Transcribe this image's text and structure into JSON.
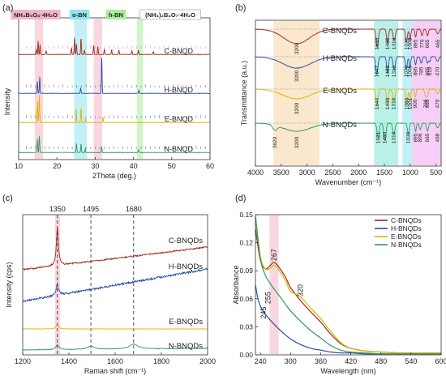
{
  "colors": {
    "C": "#9b2a1e",
    "H": "#2a4fa3",
    "E": "#e0b400",
    "N": "#2e9a5e",
    "ref_magenta": "#d63ad6",
    "ref_black": "#1a1a1a",
    "band_pink": "#f3b6c4",
    "band_cyan": "#8fe4f0",
    "band_green": "#a6ef9a",
    "band_orange": "#f6d3a6",
    "band_teal": "#7fe6d6",
    "band_magenta": "#f1a6f0"
  },
  "chart_data": [
    {
      "id": "a",
      "panel_label": "(a)",
      "type": "line",
      "xlabel": "2Theta (deg.)",
      "ylabel": "Intensity",
      "xlim": [
        10,
        60
      ],
      "xticks": [
        "10",
        "20",
        "30",
        "40",
        "50",
        "60"
      ],
      "grid": false,
      "phase_labels": [
        "NH₄B₅O₈·4H₂O",
        "o-BN",
        "h-BN",
        "(NH₄)₂B₄O₇·4H₂O"
      ],
      "highlight_bands": [
        {
          "x0": 14.2,
          "x1": 16.4,
          "color": "pink"
        },
        {
          "x0": 24.5,
          "x1": 27.8,
          "color": "cyan"
        },
        {
          "x0": 29.6,
          "x1": 31.8,
          "color": "pink"
        },
        {
          "x0": 40.9,
          "x1": 42.5,
          "color": "green"
        }
      ],
      "series": [
        {
          "name": "C-BNQD",
          "key": "C",
          "peaks": [
            [
              14.6,
              0.18
            ],
            [
              15.1,
              0.45
            ],
            [
              15.6,
              0.33
            ],
            [
              17.2,
              0.12
            ],
            [
              23.8,
              0.22
            ],
            [
              24.6,
              0.55
            ],
            [
              25.1,
              0.35
            ],
            [
              26.3,
              0.55
            ],
            [
              27.2,
              0.15
            ],
            [
              29.6,
              0.3
            ],
            [
              30.7,
              0.25
            ],
            [
              32.4,
              0.18
            ],
            [
              34.3,
              0.16
            ],
            [
              36.2,
              0.14
            ],
            [
              39.6,
              0.12
            ],
            [
              41.3,
              0.14
            ],
            [
              45.2,
              0.1
            ]
          ]
        },
        {
          "name": "H-BNQD",
          "key": "H",
          "peaks": [
            [
              14.9,
              0.4
            ],
            [
              15.5,
              0.55
            ],
            [
              26.2,
              0.18
            ],
            [
              31.7,
              1.25
            ],
            [
              41.4,
              0.1
            ]
          ]
        },
        {
          "name": "E-BNQD",
          "key": "E",
          "peaks": [
            [
              14.9,
              0.7
            ],
            [
              15.4,
              0.9
            ],
            [
              25.0,
              0.45
            ],
            [
              26.3,
              0.5
            ],
            [
              27.5,
              0.15
            ],
            [
              32.0,
              0.18
            ]
          ]
        },
        {
          "name": "N-BNQD",
          "key": "N",
          "peaks": [
            [
              14.9,
              0.45
            ],
            [
              15.4,
              0.55
            ],
            [
              25.1,
              0.3
            ],
            [
              26.3,
              0.3
            ],
            [
              27.4,
              0.12
            ],
            [
              31.7,
              0.2
            ],
            [
              41.3,
              0.1
            ]
          ]
        }
      ]
    },
    {
      "id": "b",
      "panel_label": "(b)",
      "type": "line",
      "xlabel": "Wavenumber (cm⁻¹)",
      "ylabel": "Transmittance (a.u.)",
      "xlim": [
        4000,
        400
      ],
      "xticks": [
        "4000",
        "3500",
        "3000",
        "2500",
        "2000",
        "1500",
        "1000",
        "500"
      ],
      "grid": false,
      "highlight_bands": [
        {
          "x0": 3650,
          "x1": 2760,
          "color": "orange"
        },
        {
          "x0": 1700,
          "x1": 1230,
          "color": "teal"
        },
        {
          "x0": 1150,
          "x1": 960,
          "color": "cyan"
        },
        {
          "x0": 960,
          "x1": 400,
          "color": "magenta"
        }
      ],
      "series": [
        {
          "name": "C-BNQDs",
          "key": "C",
          "labels": [
            "3200",
            "1638",
            "1439",
            "1310",
            "1072",
            "1003",
            "895",
            "770",
            "665",
            "465"
          ]
        },
        {
          "name": "H-BNQDs",
          "key": "H",
          "labels": [
            "3200",
            "1647",
            "1439",
            "1310",
            "1076",
            "1005",
            "895",
            "785",
            "665",
            "619",
            "470"
          ]
        },
        {
          "name": "E-BNQDs",
          "key": "E",
          "labels": [
            "3200",
            "1644",
            "1439",
            "1316",
            "1066",
            "1001",
            "900",
            "700",
            "665",
            "470"
          ]
        },
        {
          "name": "N-BNQDs",
          "key": "N",
          "labels": [
            "3620",
            "3200",
            "1621",
            "1490",
            "1316",
            "1036",
            "895",
            "806",
            "665",
            "468"
          ]
        }
      ]
    },
    {
      "id": "c",
      "panel_label": "(c)",
      "type": "line",
      "xlabel": "Raman shift (cm⁻¹)",
      "ylabel": "Intensity (cps)",
      "xlim": [
        1200,
        2000
      ],
      "xticks": [
        "1200",
        "1400",
        "1600",
        "1800",
        "2000"
      ],
      "grid": false,
      "reference_lines": [
        "1350",
        "1495",
        "1680"
      ],
      "highlight_bands": [
        {
          "x0": 1340,
          "x1": 1362,
          "color": "pink"
        }
      ],
      "series": [
        {
          "name": "C-BNQDs",
          "key": "C"
        },
        {
          "name": "H-BNQDs",
          "key": "H"
        },
        {
          "name": "E-BNQDs",
          "key": "E"
        },
        {
          "name": "N-BNQDs",
          "key": "N"
        }
      ]
    },
    {
      "id": "d",
      "panel_label": "(d)",
      "type": "line",
      "xlabel": "Wavelength (nm)",
      "ylabel": "Absorbance",
      "xlim": [
        230,
        600
      ],
      "ylim": [
        0.0,
        0.15
      ],
      "xticks": [
        "240",
        "300",
        "360",
        "420",
        "480",
        "540",
        "600"
      ],
      "yticks": [
        "0.00",
        "0.03",
        "0.06",
        "0.09",
        "0.12",
        "0.15"
      ],
      "grid": false,
      "legend": "top-right",
      "annotations": [
        "245",
        "255",
        "267",
        "320"
      ],
      "highlight_bands": [
        {
          "x0": 258,
          "x1": 276,
          "color": "pink"
        }
      ],
      "series": [
        {
          "name": "C-BNQDs",
          "key": "C",
          "x": [
            230,
            240,
            250,
            260,
            267,
            275,
            290,
            300,
            320,
            340,
            360,
            380,
            400,
            420,
            450,
            480,
            520,
            560,
            600
          ],
          "y": [
            0.135,
            0.101,
            0.092,
            0.096,
            0.099,
            0.095,
            0.083,
            0.072,
            0.058,
            0.046,
            0.035,
            0.022,
            0.012,
            0.007,
            0.004,
            0.003,
            0.002,
            0.002,
            0.002
          ]
        },
        {
          "name": "H-BNQDs",
          "key": "H",
          "x": [
            230,
            235,
            240,
            245,
            255,
            265,
            280,
            300,
            320,
            340,
            360,
            380,
            400,
            420,
            450,
            480,
            520,
            560,
            600
          ],
          "y": [
            0.075,
            0.06,
            0.052,
            0.047,
            0.04,
            0.034,
            0.026,
            0.017,
            0.011,
            0.007,
            0.005,
            0.003,
            0.002,
            0.002,
            0.001,
            0.001,
            0.001,
            0.001,
            0.001
          ]
        },
        {
          "name": "E-BNQDs",
          "key": "E",
          "x": [
            230,
            240,
            250,
            260,
            267,
            275,
            290,
            300,
            320,
            340,
            360,
            380,
            400,
            420,
            450,
            480,
            520,
            560,
            600
          ],
          "y": [
            0.15,
            0.105,
            0.092,
            0.093,
            0.096,
            0.092,
            0.079,
            0.068,
            0.062,
            0.05,
            0.039,
            0.025,
            0.013,
            0.007,
            0.004,
            0.003,
            0.002,
            0.002,
            0.002
          ]
        },
        {
          "name": "N-BNQDs",
          "key": "N",
          "x": [
            230,
            240,
            250,
            255,
            265,
            275,
            290,
            300,
            320,
            340,
            360,
            380,
            400,
            420,
            450,
            480,
            520,
            560,
            600
          ],
          "y": [
            0.148,
            0.102,
            0.085,
            0.08,
            0.072,
            0.065,
            0.054,
            0.047,
            0.036,
            0.026,
            0.018,
            0.01,
            0.005,
            0.003,
            0.002,
            0.001,
            0.001,
            0.001,
            0.001
          ]
        }
      ]
    }
  ]
}
